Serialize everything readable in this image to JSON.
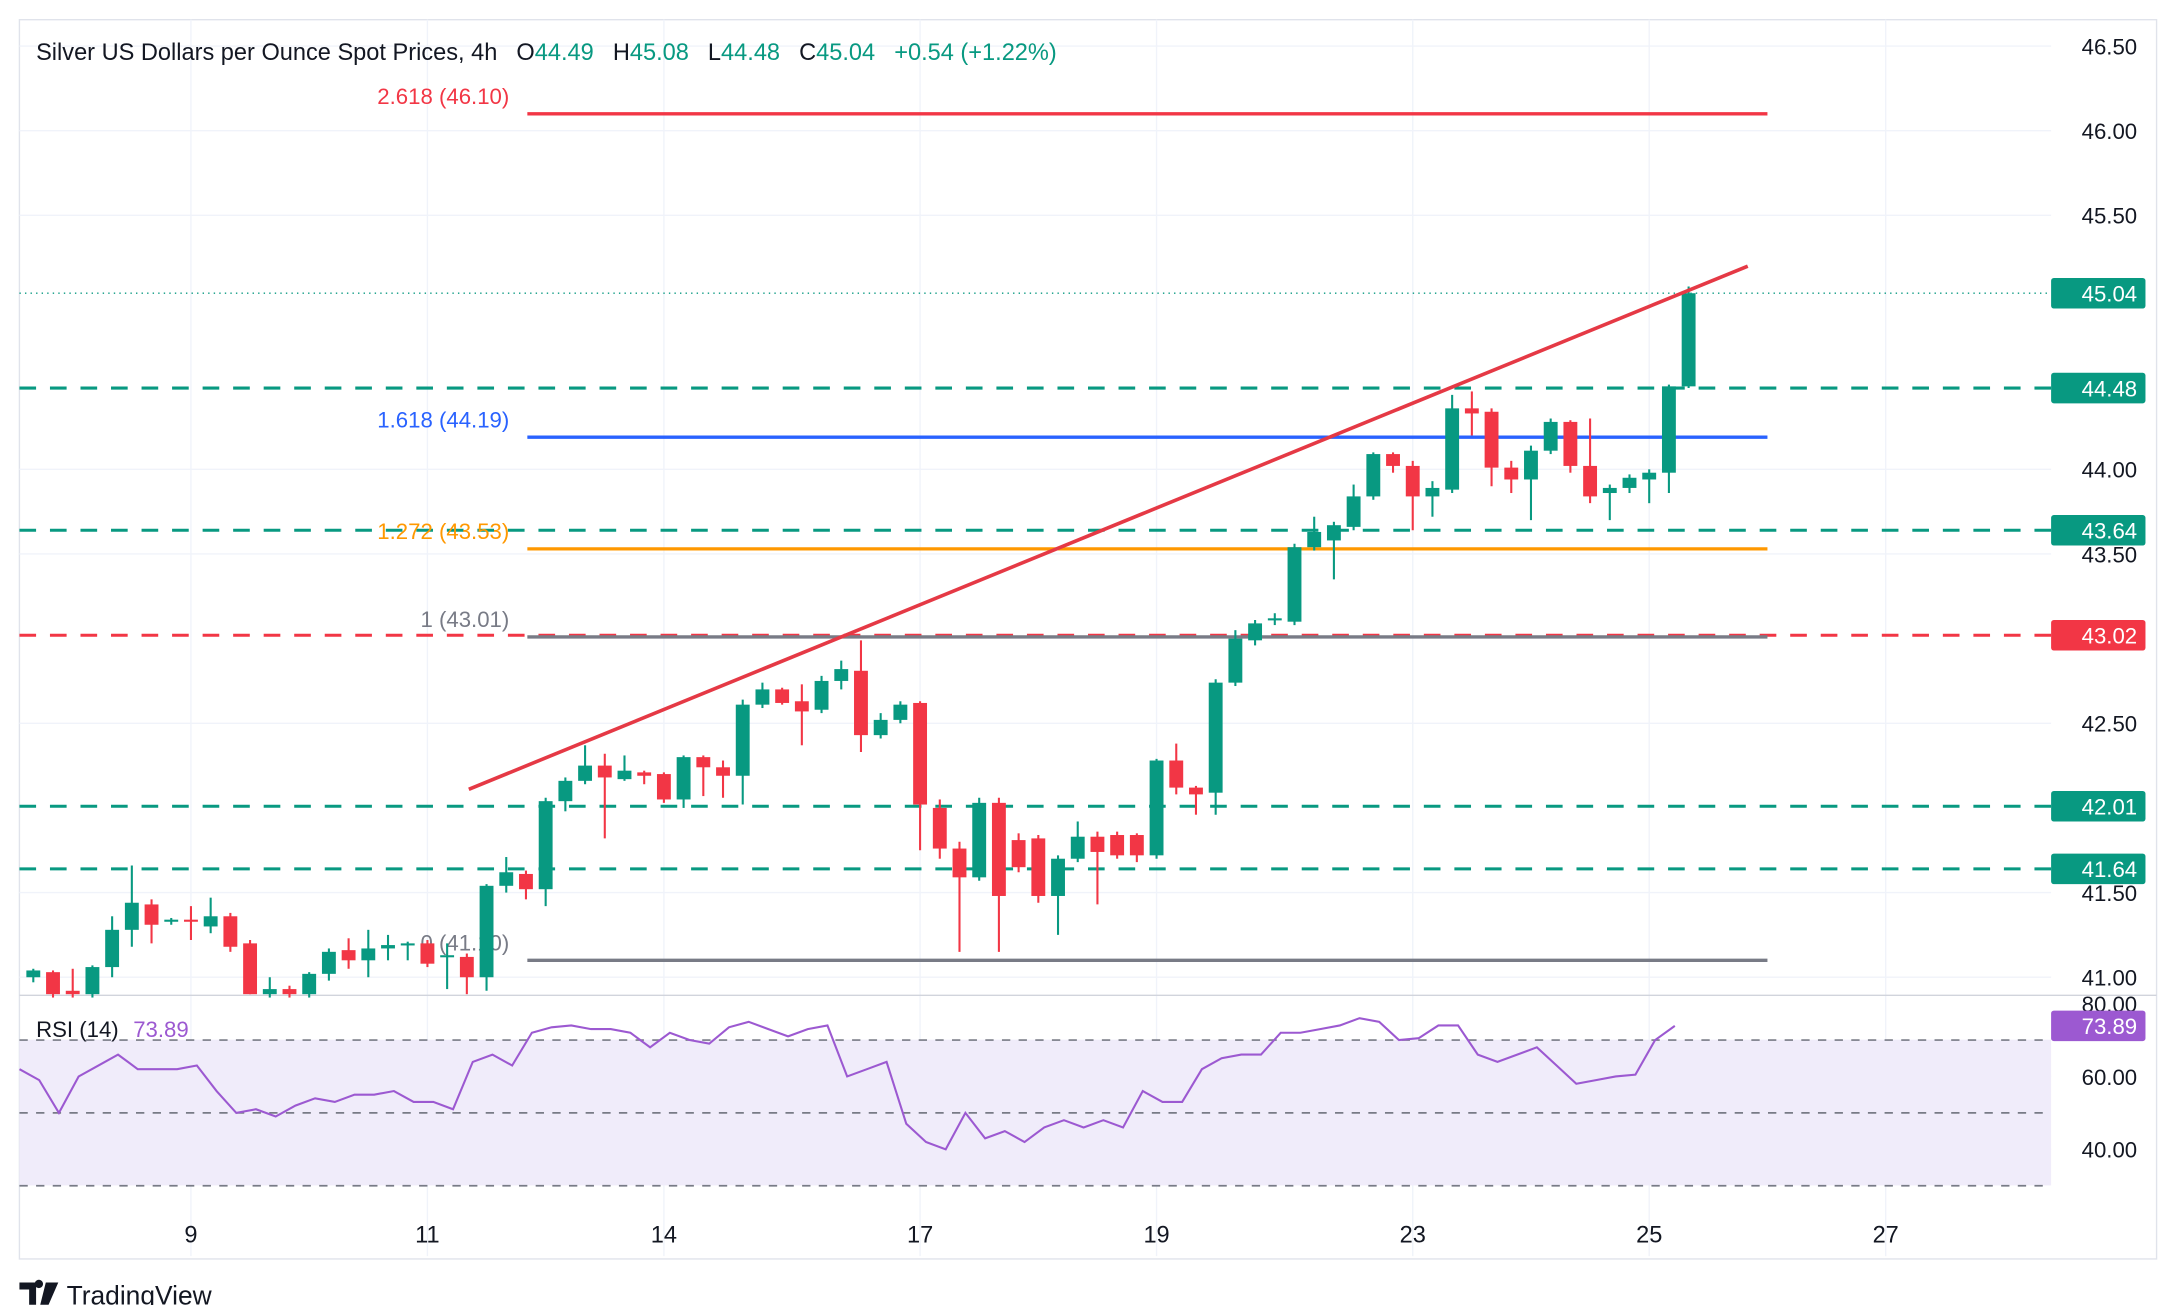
{
  "header": {
    "symbol": "Silver US Dollars per Ounce Spot Prices, 4h",
    "o_label": "O",
    "o_value": "44.49",
    "h_label": "H",
    "h_value": "45.08",
    "l_label": "L",
    "l_value": "44.48",
    "c_label": "C",
    "c_value": "45.04",
    "change": "+0.54 (+1.22%)"
  },
  "rsi_legend": {
    "label": "RSI (14)",
    "value": "73.89"
  },
  "footer": {
    "brand": "TradingView"
  },
  "colors": {
    "up": "#089981",
    "down": "#f23645",
    "fib_blue": "#2962ff",
    "fib_orange": "#ff9800",
    "fib_gray": "#787b86",
    "rsi": "#9c59d1",
    "rsi_band": "#f0ecfa",
    "trendline": "#e53945"
  },
  "chart_data": [
    {
      "type": "candlestick",
      "title": "Silver US Dollars per Ounce Spot Prices, 4h",
      "ylim": [
        40.85,
        46.62
      ],
      "y_ticks": [
        "46.50",
        "46.00",
        "45.50",
        "44.00",
        "43.50",
        "42.50",
        "41.50",
        "41.00"
      ],
      "x_ticks": [
        {
          "label": "9",
          "index": 8
        },
        {
          "label": "11",
          "index": 20
        },
        {
          "label": "14",
          "index": 32
        },
        {
          "label": "17",
          "index": 45
        },
        {
          "label": "19",
          "index": 57
        },
        {
          "label": "23",
          "index": 70
        },
        {
          "label": "25",
          "index": 82
        },
        {
          "label": "27",
          "index": 94
        }
      ],
      "candles": [
        [
          41.0,
          41.05,
          40.97,
          41.04
        ],
        [
          41.03,
          41.04,
          40.88,
          40.9
        ],
        [
          40.92,
          41.05,
          40.88,
          40.9
        ],
        [
          40.9,
          41.07,
          40.88,
          41.06
        ],
        [
          41.06,
          41.36,
          41.0,
          41.28
        ],
        [
          41.28,
          41.66,
          41.18,
          41.44
        ],
        [
          41.43,
          41.46,
          41.2,
          41.31
        ],
        [
          41.33,
          41.35,
          41.31,
          41.34
        ],
        [
          41.34,
          41.42,
          41.22,
          41.33
        ],
        [
          41.3,
          41.47,
          41.26,
          41.36
        ],
        [
          41.36,
          41.38,
          41.15,
          41.18
        ],
        [
          41.2,
          41.22,
          40.9,
          40.9
        ],
        [
          40.9,
          41.0,
          40.88,
          40.93
        ],
        [
          40.93,
          40.95,
          40.88,
          40.9
        ],
        [
          40.9,
          41.03,
          40.88,
          41.02
        ],
        [
          41.02,
          41.17,
          40.98,
          41.15
        ],
        [
          41.16,
          41.23,
          41.05,
          41.1
        ],
        [
          41.1,
          41.28,
          41.0,
          41.17
        ],
        [
          41.17,
          41.25,
          41.1,
          41.19
        ],
        [
          41.19,
          41.21,
          41.1,
          41.2
        ],
        [
          41.2,
          41.22,
          41.06,
          41.08
        ],
        [
          41.12,
          41.2,
          40.93,
          41.13
        ],
        [
          41.12,
          41.14,
          40.9,
          41.0
        ],
        [
          41.0,
          41.55,
          40.92,
          41.54
        ],
        [
          41.54,
          41.71,
          41.5,
          41.62
        ],
        [
          41.61,
          41.63,
          41.46,
          41.52
        ],
        [
          41.52,
          42.06,
          41.42,
          42.04
        ],
        [
          42.04,
          42.18,
          41.98,
          42.16
        ],
        [
          42.16,
          42.37,
          42.14,
          42.25
        ],
        [
          42.25,
          42.32,
          41.82,
          42.18
        ],
        [
          42.17,
          42.31,
          42.16,
          42.22
        ],
        [
          42.21,
          42.22,
          42.14,
          42.19
        ],
        [
          42.2,
          42.21,
          42.03,
          42.05
        ],
        [
          42.05,
          42.31,
          42.0,
          42.3
        ],
        [
          42.3,
          42.31,
          42.07,
          42.24
        ],
        [
          42.24,
          42.28,
          42.06,
          42.19
        ],
        [
          42.19,
          42.64,
          42.02,
          42.61
        ],
        [
          42.61,
          42.74,
          42.59,
          42.7
        ],
        [
          42.7,
          42.71,
          42.61,
          42.62
        ],
        [
          42.63,
          42.73,
          42.37,
          42.57
        ],
        [
          42.58,
          42.78,
          42.56,
          42.75
        ],
        [
          42.75,
          42.87,
          42.7,
          42.82
        ],
        [
          42.81,
          42.99,
          42.33,
          42.43
        ],
        [
          42.43,
          42.56,
          42.41,
          42.52
        ],
        [
          42.52,
          42.63,
          42.5,
          42.61
        ],
        [
          42.62,
          42.63,
          41.75,
          42.02
        ],
        [
          42.0,
          42.05,
          41.7,
          41.76
        ],
        [
          41.76,
          41.8,
          41.15,
          41.59
        ],
        [
          41.59,
          42.06,
          41.57,
          42.03
        ],
        [
          42.03,
          42.06,
          41.15,
          41.48
        ],
        [
          41.81,
          41.85,
          41.62,
          41.65
        ],
        [
          41.82,
          41.84,
          41.44,
          41.48
        ],
        [
          41.48,
          41.72,
          41.25,
          41.7
        ],
        [
          41.7,
          41.92,
          41.68,
          41.83
        ],
        [
          41.83,
          41.86,
          41.43,
          41.74
        ],
        [
          41.84,
          41.86,
          41.7,
          41.72
        ],
        [
          41.84,
          41.85,
          41.68,
          41.72
        ],
        [
          41.72,
          42.29,
          41.7,
          42.28
        ],
        [
          42.28,
          42.38,
          42.08,
          42.12
        ],
        [
          42.12,
          42.13,
          41.96,
          42.08
        ],
        [
          42.09,
          42.76,
          41.96,
          42.74
        ],
        [
          42.74,
          43.05,
          42.72,
          43.0
        ],
        [
          42.99,
          43.11,
          42.96,
          43.09
        ],
        [
          43.11,
          43.15,
          43.08,
          43.12
        ],
        [
          43.1,
          43.56,
          43.08,
          43.54
        ],
        [
          43.54,
          43.72,
          43.52,
          43.63
        ],
        [
          43.58,
          43.69,
          43.35,
          43.67
        ],
        [
          43.66,
          43.91,
          43.64,
          43.84
        ],
        [
          43.84,
          44.1,
          43.82,
          44.09
        ],
        [
          44.09,
          44.1,
          43.98,
          44.02
        ],
        [
          44.02,
          44.05,
          43.64,
          43.84
        ],
        [
          43.84,
          43.93,
          43.72,
          43.89
        ],
        [
          43.88,
          44.44,
          43.86,
          44.36
        ],
        [
          44.36,
          44.46,
          44.2,
          44.33
        ],
        [
          44.34,
          44.36,
          43.9,
          44.01
        ],
        [
          44.01,
          44.05,
          43.86,
          43.94
        ],
        [
          43.94,
          44.14,
          43.7,
          44.11
        ],
        [
          44.11,
          44.3,
          44.09,
          44.28
        ],
        [
          44.28,
          44.29,
          43.98,
          44.02
        ],
        [
          44.02,
          44.3,
          43.8,
          43.84
        ],
        [
          43.86,
          43.91,
          43.7,
          43.89
        ],
        [
          43.89,
          43.97,
          43.86,
          43.95
        ],
        [
          43.94,
          44.0,
          43.8,
          43.98
        ],
        [
          43.98,
          44.5,
          43.86,
          44.49
        ],
        [
          44.49,
          45.08,
          44.48,
          45.04
        ]
      ],
      "horizontal_levels": [
        {
          "price": 44.48,
          "label": "44.48",
          "color": "#089981",
          "style": "dashed"
        },
        {
          "price": 43.64,
          "label": "43.64",
          "color": "#089981",
          "style": "dashed"
        },
        {
          "price": 43.02,
          "label": "43.02",
          "color": "#f23645",
          "style": "dashed"
        },
        {
          "price": 42.01,
          "label": "42.01",
          "color": "#089981",
          "style": "dashed"
        },
        {
          "price": 41.64,
          "label": "41.64",
          "color": "#089981",
          "style": "dashed"
        }
      ],
      "last_price": {
        "price": 45.04,
        "label": "45.04",
        "color": "#089981"
      },
      "fibonacci": {
        "start_index": 25,
        "end_index": 88,
        "levels": [
          {
            "ratio": "2.618",
            "price": 46.1,
            "label": "2.618 (46.10)",
            "color": "#f23645"
          },
          {
            "ratio": "1.618",
            "price": 44.19,
            "label": "1.618 (44.19)",
            "color": "#2962ff"
          },
          {
            "ratio": "1.272",
            "price": 43.53,
            "label": "1.272 (43.53)",
            "color": "#ff9800"
          },
          {
            "ratio": "1",
            "price": 43.01,
            "label": "1 (43.01)",
            "color": "#787b86"
          },
          {
            "ratio": "0",
            "price": 41.1,
            "label": "0 (41.10)",
            "color": "#787b86"
          }
        ]
      },
      "trendline": {
        "from": {
          "index": 22.1,
          "price": 42.11
        },
        "to": {
          "index": 87.0,
          "price": 45.2
        },
        "color": "#e53945"
      }
    },
    {
      "type": "line",
      "title": "RSI (14)",
      "ylim": [
        32,
        81.5
      ],
      "y_ticks": [
        "80.00",
        "60.00",
        "40.00"
      ],
      "bands": [
        70,
        50,
        30
      ],
      "last_value": "73.89",
      "values": [
        62,
        59,
        50,
        60,
        63,
        66,
        62,
        62,
        62,
        63,
        56,
        50,
        51,
        49,
        52,
        54,
        53,
        55,
        55,
        56,
        53,
        53,
        51,
        64,
        66,
        63,
        72,
        73.5,
        74,
        73,
        73,
        72,
        68,
        72,
        70,
        69,
        73.5,
        75,
        73,
        71,
        73,
        74,
        60,
        62,
        64,
        47,
        42,
        40,
        50,
        43,
        45,
        42,
        46,
        48,
        46,
        48,
        46,
        56,
        53,
        53,
        62,
        65,
        66,
        66,
        72,
        72,
        73,
        74,
        76,
        75,
        70,
        70.5,
        74,
        74,
        66,
        64,
        66,
        68,
        63,
        58,
        59,
        60,
        60.5,
        70,
        73.89
      ]
    }
  ]
}
